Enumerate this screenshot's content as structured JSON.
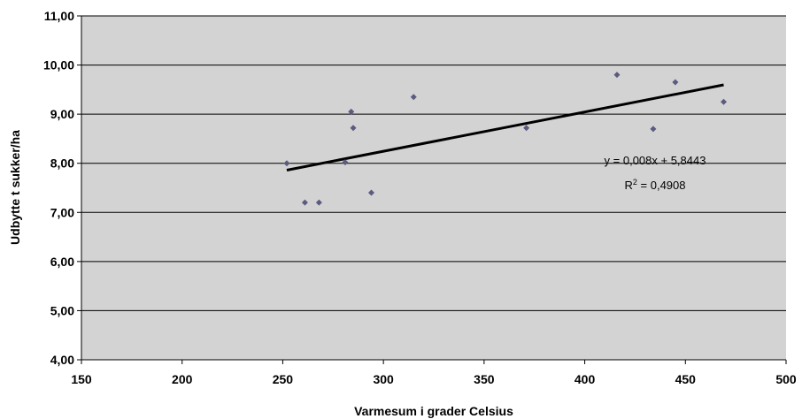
{
  "chart_data": {
    "type": "scatter",
    "xlabel": "Varmesum i grader Celsius",
    "ylabel": "Udbytte t sukker/ha",
    "xlim": [
      150,
      500
    ],
    "ylim": [
      4,
      11
    ],
    "x_ticks": [
      "150",
      "200",
      "250",
      "300",
      "350",
      "400",
      "450",
      "500"
    ],
    "y_ticks": [
      "4,00",
      "5,00",
      "6,00",
      "7,00",
      "8,00",
      "9,00",
      "10,00",
      "11,00"
    ],
    "grid": "horizontal",
    "plot_background": "#d3d3d3",
    "marker_color": "#5b5b7f",
    "points": [
      {
        "x": 252,
        "y": 8.0
      },
      {
        "x": 261,
        "y": 7.2
      },
      {
        "x": 268,
        "y": 7.2
      },
      {
        "x": 281,
        "y": 8.02
      },
      {
        "x": 284,
        "y": 9.05
      },
      {
        "x": 285,
        "y": 8.72
      },
      {
        "x": 294,
        "y": 7.4
      },
      {
        "x": 315,
        "y": 9.35
      },
      {
        "x": 371,
        "y": 8.72
      },
      {
        "x": 416,
        "y": 9.8
      },
      {
        "x": 434,
        "y": 8.7
      },
      {
        "x": 445,
        "y": 9.65
      },
      {
        "x": 469,
        "y": 9.25
      }
    ],
    "trendline": {
      "x_range": [
        252,
        469
      ],
      "slope": 0.008,
      "intercept": 5.8443,
      "equation_text": "y = 0,008x + 5,8443",
      "r2_prefix": "R",
      "r2_sup": "2",
      "r2_value": " = 0,4908"
    }
  }
}
